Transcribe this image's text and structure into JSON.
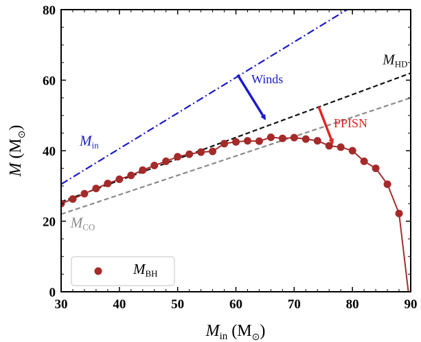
{
  "chart_data": {
    "type": "line",
    "title": "",
    "xlabel": {
      "main": "M",
      "sub": "in",
      "unit": "(M",
      "unit_sub": "⊙",
      "close": ")"
    },
    "ylabel": {
      "main": "M",
      "unit": "(M",
      "unit_sub": "⊙",
      "close": ")"
    },
    "xlim": [
      30,
      90
    ],
    "ylim": [
      0,
      80
    ],
    "xticks": [
      "30",
      "40",
      "50",
      "60",
      "70",
      "80",
      "90"
    ],
    "yticks": [
      "0",
      "20",
      "40",
      "60",
      "80"
    ],
    "xtick_values": [
      30,
      40,
      50,
      60,
      70,
      80,
      90
    ],
    "ytick_values": [
      0,
      20,
      40,
      60,
      80
    ],
    "series": [
      {
        "key": "min",
        "label_main": "M",
        "label_sub": "in",
        "color": "#1a1acc",
        "style": "dashdot",
        "x": [
          30,
          90
        ],
        "y": [
          30.5,
          91
        ]
      },
      {
        "key": "mhd",
        "label_main": "M",
        "label_sub": "HD",
        "color": "#111111",
        "style": "dashed",
        "x": [
          30,
          90
        ],
        "y": [
          25.5,
          62
        ]
      },
      {
        "key": "mco",
        "label_main": "M",
        "label_sub": "CO",
        "color": "#8a8a8a",
        "style": "dashed",
        "x": [
          30,
          90
        ],
        "y": [
          22,
          55
        ]
      },
      {
        "key": "mbh",
        "label_main": "M",
        "label_sub": "BH",
        "color": "#a52a2a",
        "style": "solid-markers",
        "x": [
          30,
          32,
          34,
          36,
          38,
          40,
          42,
          44,
          46,
          48,
          50,
          52,
          54,
          56,
          58,
          60,
          62,
          64,
          66,
          68,
          70,
          72,
          74,
          76,
          78,
          80,
          82,
          84,
          86,
          88
        ],
        "y": [
          25.0,
          26.3,
          27.8,
          29.3,
          30.7,
          31.9,
          33.0,
          34.5,
          35.8,
          37.0,
          38.3,
          39.0,
          39.6,
          39.8,
          42.0,
          42.5,
          42.8,
          42.7,
          43.8,
          43.5,
          43.7,
          43.3,
          42.8,
          41.4,
          41.0,
          40.0,
          37.0,
          35.0,
          30.5,
          22.2
        ],
        "line_x": [
          30,
          32,
          34,
          36,
          38,
          40,
          42,
          44,
          46,
          48,
          50,
          52,
          54,
          56,
          58,
          60,
          62,
          64,
          66,
          68,
          70,
          72,
          74,
          76,
          78,
          80,
          82,
          84,
          86,
          88,
          89.6
        ],
        "line_y": [
          25.0,
          26.3,
          27.8,
          29.3,
          30.7,
          31.9,
          33.0,
          34.5,
          35.8,
          37.0,
          38.3,
          39.0,
          39.6,
          39.8,
          42.0,
          42.5,
          42.8,
          42.7,
          43.8,
          43.5,
          43.7,
          43.3,
          42.8,
          41.4,
          41.0,
          40.0,
          37.0,
          35.0,
          30.5,
          22.2,
          0
        ]
      }
    ],
    "annotations": [
      {
        "key": "winds",
        "text": "Winds",
        "color": "#1a1acc",
        "arrow_from": [
          60.3,
          61.5
        ],
        "arrow_to": [
          65,
          49
        ]
      },
      {
        "key": "ppisn",
        "text": "PPISN",
        "color": "#e02424",
        "arrow_from": [
          74.2,
          52.5
        ],
        "arrow_to": [
          76.6,
          42.2
        ]
      }
    ],
    "legend": {
      "placement": "bottom-left",
      "entries": [
        "mbh"
      ]
    }
  }
}
